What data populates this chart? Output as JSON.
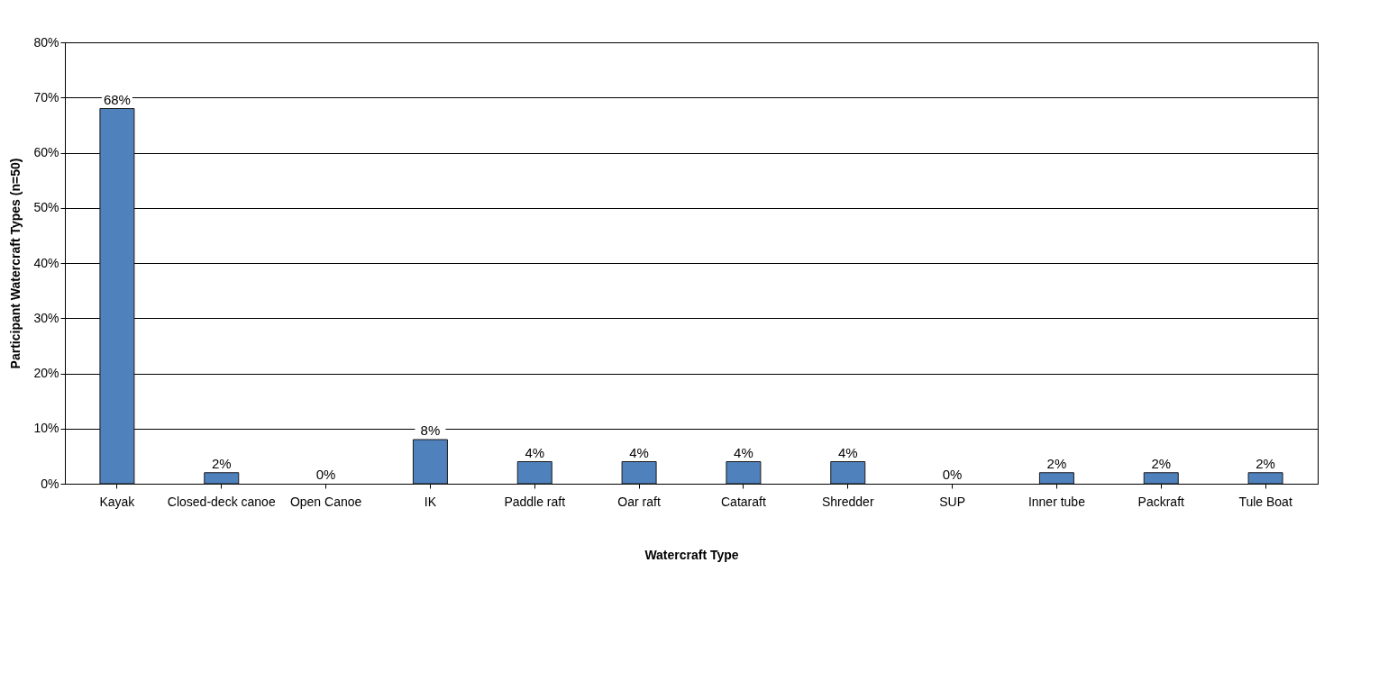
{
  "chart_data": {
    "type": "bar",
    "xlabel": "Watercraft Type",
    "ylabel": "Participant Watercraft Types (n=50)",
    "categories": [
      "Kayak",
      "Closed-deck canoe",
      "Open Canoe",
      "IK",
      "Paddle raft",
      "Oar raft",
      "Cataraft",
      "Shredder",
      "SUP",
      "Inner tube",
      "Packraft",
      "Tule Boat"
    ],
    "values": [
      68,
      2,
      0,
      8,
      4,
      4,
      4,
      4,
      0,
      2,
      2,
      2
    ],
    "value_labels": [
      "68%",
      "2%",
      "0%",
      "8%",
      "4%",
      "4%",
      "4%",
      "4%",
      "0%",
      "2%",
      "2%",
      "2%"
    ],
    "color": "#4f81bd",
    "ylim": [
      0,
      80
    ],
    "yticks": [
      {
        "value": 0,
        "label": "0%"
      },
      {
        "value": 10,
        "label": "10%"
      },
      {
        "value": 20,
        "label": "20%"
      },
      {
        "value": 30,
        "label": "30%"
      },
      {
        "value": 40,
        "label": "40%"
      },
      {
        "value": 50,
        "label": "50%"
      },
      {
        "value": 60,
        "label": "60%"
      },
      {
        "value": 70,
        "label": "70%"
      },
      {
        "value": 80,
        "label": "80%"
      }
    ],
    "grid": "y"
  }
}
